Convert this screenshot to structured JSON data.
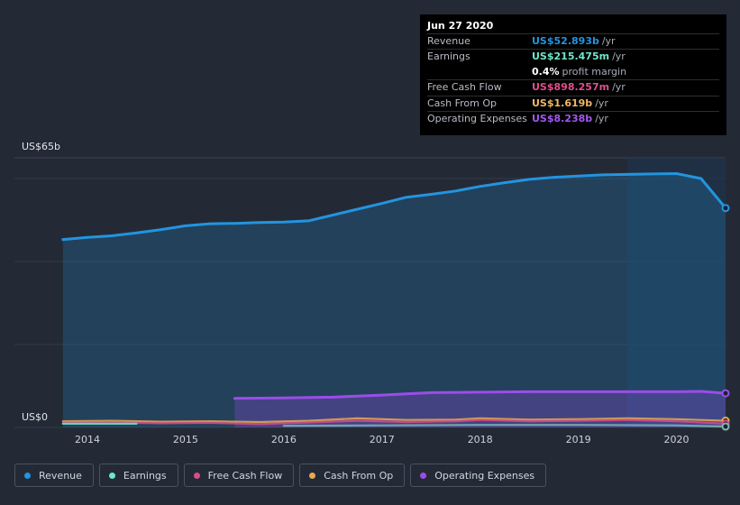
{
  "tooltip": {
    "date": "Jun 27 2020",
    "rows": [
      {
        "label": "Revenue",
        "value": "US$52.893b",
        "unit": "/yr",
        "color": "#2394df"
      },
      {
        "label": "Earnings",
        "value": "US$215.475m",
        "unit": "/yr",
        "color": "#6ee7c8"
      },
      {
        "label": "",
        "value": "0.4%",
        "unit": "profit margin",
        "color": "#ffffff"
      },
      {
        "label": "Free Cash Flow",
        "value": "US$898.257m",
        "unit": "/yr",
        "color": "#e0508a"
      },
      {
        "label": "Cash From Op",
        "value": "US$1.619b",
        "unit": "/yr",
        "color": "#f0b766"
      },
      {
        "label": "Operating Expenses",
        "value": "US$8.238b",
        "unit": "/yr",
        "color": "#a259f0"
      }
    ]
  },
  "legend": [
    {
      "label": "Revenue",
      "color": "#2394df"
    },
    {
      "label": "Earnings",
      "color": "#6ee7c8"
    },
    {
      "label": "Free Cash Flow",
      "color": "#d74f86"
    },
    {
      "label": "Cash From Op",
      "color": "#e8a951"
    },
    {
      "label": "Operating Expenses",
      "color": "#9b4de8"
    }
  ],
  "chart_data": {
    "type": "area",
    "y_unit": "US$ billions",
    "ylim": [
      0,
      65
    ],
    "y_tick_labels": [
      {
        "value": 65,
        "label": "US$65b"
      },
      {
        "value": 0,
        "label": "US$0"
      }
    ],
    "xlim": [
      2013.55,
      2020.5
    ],
    "x_tick_labels": [
      "2014",
      "2015",
      "2016",
      "2017",
      "2018",
      "2019",
      "2020"
    ],
    "x_ticks": [
      2014,
      2015,
      2016,
      2017,
      2018,
      2019,
      2020
    ],
    "grid": true,
    "highlight_from": 2019.5,
    "series": [
      {
        "name": "Revenue",
        "color": "#2394df",
        "fill": true,
        "points": [
          [
            2013.75,
            45.3
          ],
          [
            2014.0,
            45.8
          ],
          [
            2014.25,
            46.2
          ],
          [
            2014.5,
            46.9
          ],
          [
            2014.75,
            47.7
          ],
          [
            2015.0,
            48.6
          ],
          [
            2015.25,
            49.1
          ],
          [
            2015.5,
            49.2
          ],
          [
            2015.75,
            49.4
          ],
          [
            2016.0,
            49.5
          ],
          [
            2016.25,
            49.8
          ],
          [
            2016.5,
            51.2
          ],
          [
            2016.75,
            52.6
          ],
          [
            2017.0,
            54.0
          ],
          [
            2017.25,
            55.5
          ],
          [
            2017.5,
            56.2
          ],
          [
            2017.75,
            57.0
          ],
          [
            2018.0,
            58.1
          ],
          [
            2018.25,
            59.0
          ],
          [
            2018.5,
            59.8
          ],
          [
            2018.75,
            60.3
          ],
          [
            2019.0,
            60.6
          ],
          [
            2019.25,
            60.9
          ],
          [
            2019.5,
            61.0
          ],
          [
            2019.75,
            61.1
          ],
          [
            2020.0,
            61.2
          ],
          [
            2020.25,
            60.0
          ],
          [
            2020.5,
            52.893
          ]
        ]
      },
      {
        "name": "Operating Expenses",
        "color": "#9b4de8",
        "fill": true,
        "points": [
          [
            2015.5,
            7.0
          ],
          [
            2016.0,
            7.1
          ],
          [
            2016.5,
            7.3
          ],
          [
            2017.0,
            7.8
          ],
          [
            2017.5,
            8.4
          ],
          [
            2018.0,
            8.5
          ],
          [
            2018.5,
            8.6
          ],
          [
            2019.0,
            8.6
          ],
          [
            2019.5,
            8.6
          ],
          [
            2020.0,
            8.6
          ],
          [
            2020.25,
            8.7
          ],
          [
            2020.5,
            8.238
          ]
        ]
      },
      {
        "name": "Cash From Op",
        "color": "#e8a951",
        "fill": false,
        "points": [
          [
            2013.75,
            1.5
          ],
          [
            2014.25,
            1.6
          ],
          [
            2014.75,
            1.4
          ],
          [
            2015.25,
            1.5
          ],
          [
            2015.75,
            1.3
          ],
          [
            2016.25,
            1.6
          ],
          [
            2016.75,
            2.2
          ],
          [
            2017.25,
            1.8
          ],
          [
            2017.75,
            1.9
          ],
          [
            2018.0,
            2.2
          ],
          [
            2018.5,
            1.9
          ],
          [
            2019.0,
            2.0
          ],
          [
            2019.5,
            2.2
          ],
          [
            2020.0,
            2.0
          ],
          [
            2020.5,
            1.619
          ]
        ]
      },
      {
        "name": "Free Cash Flow",
        "color": "#d74f86",
        "fill": false,
        "points": [
          [
            2013.75,
            1.1
          ],
          [
            2014.25,
            1.2
          ],
          [
            2014.75,
            1.0
          ],
          [
            2015.25,
            1.1
          ],
          [
            2015.75,
            0.8
          ],
          [
            2016.25,
            1.2
          ],
          [
            2016.75,
            1.6
          ],
          [
            2017.25,
            1.3
          ],
          [
            2017.75,
            1.5
          ],
          [
            2018.0,
            1.8
          ],
          [
            2018.5,
            1.5
          ],
          [
            2019.0,
            1.6
          ],
          [
            2019.5,
            1.8
          ],
          [
            2020.0,
            1.5
          ],
          [
            2020.5,
            0.898
          ]
        ]
      },
      {
        "name": "Earnings",
        "color": "#6ee7c8",
        "fill": false,
        "points": [
          [
            2013.75,
            0.9
          ],
          [
            2014.5,
            0.9
          ]
        ]
      },
      {
        "name": "Earnings (late)",
        "color": "#7fb6b0",
        "fill": false,
        "points": [
          [
            2016.0,
            0.4
          ],
          [
            2017.0,
            0.5
          ],
          [
            2018.0,
            0.6
          ],
          [
            2019.0,
            0.6
          ],
          [
            2020.0,
            0.5
          ],
          [
            2020.5,
            0.215
          ]
        ]
      }
    ]
  }
}
